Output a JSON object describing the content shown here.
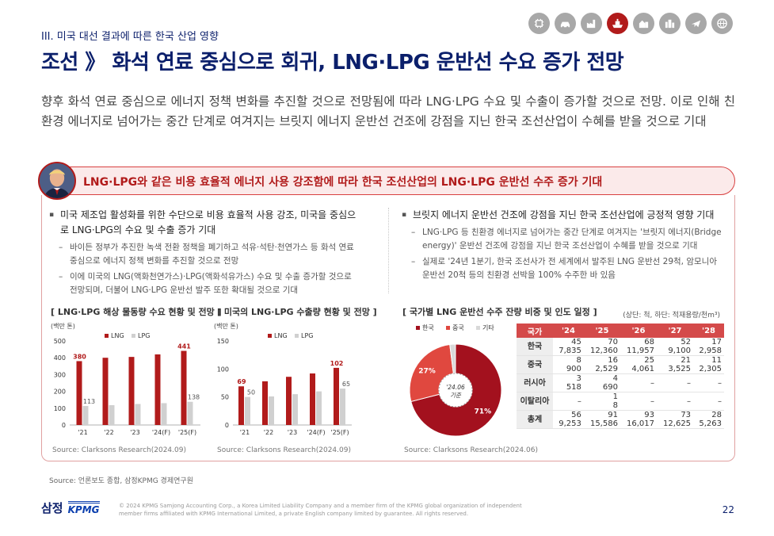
{
  "header": {
    "section": "III. 미국 대선 결과에 따른 한국 산업 영향",
    "title": "조선 》 화석 연료 중심으로 회귀, LNG·LPG 운반선 수요 증가 전망",
    "icons": [
      "chip-icon",
      "car-icon",
      "factory-icon",
      "ship-icon",
      "buildings-icon",
      "city-icon",
      "plane-icon",
      "globe-icon"
    ],
    "active_icon": "ship-icon"
  },
  "lead": "향후 화석 연료 중심으로 에너지 정책 변화를 추진할 것으로 전망됨에 따라 LNG·LPG 수요 및 수출이 증가할 것으로 전망. 이로 인해 친환경 에너지로 넘어가는 중간 단계로 여겨지는 브릿지 에너지 운반선 건조에 강점을 지닌 한국 조선산업이 수혜를 받을 것으로 기대",
  "banner": {
    "text": "LNG·LPG와 같은 비용 효율적 에너지 사용 강조함에 따라 한국 조선산업의 LNG·LPG 운반선 수주 증가 기대"
  },
  "left_col": {
    "bullet": "미국 제조업 활성화를 위한 수단으로 비용 효율적 사용 강조, 미국을 중심으로 LNG·LPG의 수요 및 수출 증가 기대",
    "subs": [
      "바이든 정부가 추진한 녹색 전환 정책을 폐기하고 석유·석탄·천연가스 등 화석 연료 중심으로 에너지 정책 변화를 추진할 것으로 전망",
      "이에 미국의 LNG(액화천연가스)·LPG(액화석유가스) 수요 및 수출 증가할 것으로 전망되며, 더불어 LNG·LPG 운반선 발주 또한 확대될 것으로 기대"
    ]
  },
  "right_col": {
    "bullet": "브릿지 에너지 운반선 건조에 강점을 지닌 한국 조선산업에 긍정적 영향 기대",
    "subs": [
      "LNG·LPG 등 친환경 에너지로 넘어가는 중간 단계로 여겨지는 '브릿지 에너지(Bridge energy)' 운반선 건조에 강점을 지닌 한국 조선산업이 수혜를 받을 것으로 기대",
      "실제로 '24년 1분기, 한국 조선사가 전 세계에서 발주된 LNG 운반선 29척, 암모니아 운반선 20척 등의 친환경 선박을 100% 수주한 바 있음"
    ]
  },
  "chart_titles": {
    "c1": "[ LNG·LPG 해상 물동량 수요 현황 및 전망 ]",
    "c2": "[ 미국의 LNG·LPG 수출량 현황 및 전망 ]",
    "c3": "[ 국가별 LNG 운반선 수주 잔량 비중 및 인도 일정 ]"
  },
  "chart_sources": {
    "c1": "Source: Clarksons Research(2024.09)",
    "c2": "Source: Clarksons Research(2024.09)",
    "c3": "Source: Clarksons Research(2024.06)"
  },
  "chart_data": [
    {
      "type": "bar",
      "unit": "(백만 톤)",
      "categories": [
        "'21",
        "'22",
        "'23",
        "'24(F)",
        "'25(F)"
      ],
      "series": [
        {
          "name": "LNG",
          "values": [
            380,
            400,
            405,
            420,
            441
          ],
          "color": "#b11b1b"
        },
        {
          "name": "LPG",
          "values": [
            113,
            118,
            125,
            130,
            138
          ],
          "color": "#d0d0d0"
        }
      ],
      "labels": {
        "LNG_first": "380",
        "LNG_last": "441",
        "LPG_first": "113",
        "LPG_last": "138"
      },
      "yticks": [
        "0",
        "100",
        "200",
        "300",
        "400",
        "500"
      ],
      "ylim": [
        0,
        500
      ]
    },
    {
      "type": "bar",
      "unit": "(백만 톤)",
      "categories": [
        "'21",
        "'22",
        "'23",
        "'24(F)",
        "'25(F)"
      ],
      "series": [
        {
          "name": "LNG",
          "values": [
            69,
            78,
            86,
            92,
            102
          ],
          "color": "#b11b1b"
        },
        {
          "name": "LPG",
          "values": [
            50,
            51,
            55,
            60,
            65
          ],
          "color": "#d0d0d0"
        }
      ],
      "labels": {
        "LNG_first": "69",
        "LNG_last": "102",
        "LPG_first": "50",
        "LPG_last": "65"
      },
      "yticks": [
        "0",
        "50",
        "100",
        "150"
      ],
      "ylim": [
        0,
        150
      ]
    },
    {
      "type": "pie",
      "center_label": "'24.06 기준",
      "slices": [
        {
          "name": "한국",
          "value": 71,
          "label": "71%",
          "color": "#a3111e"
        },
        {
          "name": "중국",
          "value": 27,
          "label": "27%",
          "color": "#e0483f"
        },
        {
          "name": "기타",
          "value": 2,
          "label": "",
          "color": "#d9d9d9"
        }
      ]
    }
  ],
  "table": {
    "unit": "(상단: 척, 하단: 적재용량/천m³)",
    "headers": [
      "국가",
      "'24",
      "'25",
      "'26",
      "'27",
      "'28"
    ],
    "rows": [
      {
        "label": "한국",
        "cells": [
          [
            "45",
            "7,835"
          ],
          [
            "70",
            "12,360"
          ],
          [
            "68",
            "11,957"
          ],
          [
            "52",
            "9,100"
          ],
          [
            "17",
            "2,958"
          ]
        ]
      },
      {
        "label": "중국",
        "cells": [
          [
            "8",
            "900"
          ],
          [
            "16",
            "2,529"
          ],
          [
            "25",
            "4,061"
          ],
          [
            "21",
            "3,525"
          ],
          [
            "11",
            "2,305"
          ]
        ]
      },
      {
        "label": "러시아",
        "cells": [
          [
            "3",
            "518"
          ],
          [
            "4",
            "690"
          ],
          [
            "–",
            ""
          ],
          [
            "–",
            ""
          ],
          [
            "–",
            ""
          ]
        ]
      },
      {
        "label": "이탈리아",
        "cells": [
          [
            "–",
            ""
          ],
          [
            "1",
            "8"
          ],
          [
            "–",
            ""
          ],
          [
            "–",
            ""
          ],
          [
            "–",
            ""
          ]
        ]
      },
      {
        "label": "총계",
        "cells": [
          [
            "56",
            "9,253"
          ],
          [
            "91",
            "15,586"
          ],
          [
            "93",
            "16,017"
          ],
          [
            "73",
            "12,625"
          ],
          [
            "28",
            "5,263"
          ]
        ]
      }
    ]
  },
  "bottom_source": "Source: 언론보도 종합, 삼정KPMG 경제연구원",
  "footer": {
    "samjong": "삼정",
    "kpmg": "KPMG",
    "legal": "© 2024 KPMG Samjong Accounting Corp., a Korea Limited Liability Company and a member firm of the KPMG global organization of independent member firms affiliated with KPMG International Limited, a private English company limited by guarantee. All rights reserved.",
    "page": "22"
  }
}
